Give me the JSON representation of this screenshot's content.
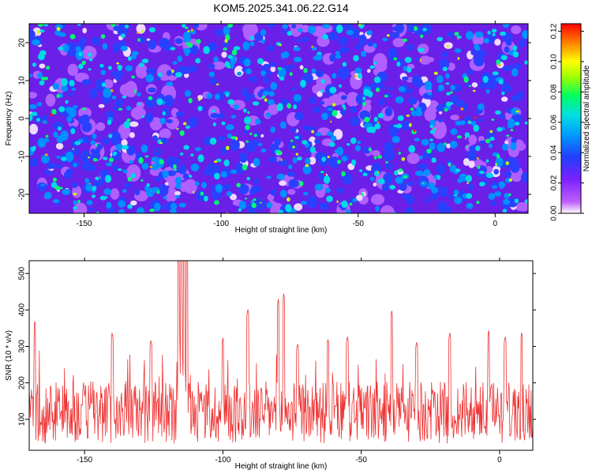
{
  "title": "KOM5.2025.341.06.22.G14",
  "chart_data": [
    {
      "type": "heatmap",
      "xlabel": "Height of straight line (km)",
      "ylabel": "Frequency (Hz)",
      "xlim": [
        -170,
        12
      ],
      "ylim": [
        -25,
        25
      ],
      "xticks": [
        -150,
        -100,
        -50,
        0
      ],
      "yticks": [
        -20,
        -10,
        0,
        10,
        20
      ],
      "xtick_labels": [
        "-150",
        "-100",
        "-50",
        "0"
      ],
      "ytick_labels": [
        "-20",
        "-10",
        "0",
        "10",
        "20"
      ],
      "colorbar": {
        "label": "Normalized spectral amplitude",
        "range": [
          0,
          0.125
        ],
        "ticks": [
          0.0,
          0.02,
          0.04,
          0.06,
          0.08,
          0.1,
          0.12
        ],
        "tick_labels": [
          "0.00",
          "0.02",
          "0.04",
          "0.06",
          "0.08",
          "0.10",
          "0.12"
        ]
      }
    },
    {
      "type": "line",
      "xlabel": "Height of straight line (km)",
      "ylabel": "SNR (10 * v/v)",
      "xlim": [
        -170,
        12
      ],
      "ylim": [
        15,
        535
      ],
      "xticks": [
        -150,
        -100,
        -50,
        0
      ],
      "yticks": [
        100,
        200,
        300,
        400,
        500
      ],
      "xtick_labels": [
        "-150",
        "-100",
        "-50",
        "0"
      ],
      "ytick_labels": [
        "100",
        "200",
        "300",
        "400",
        "500"
      ],
      "series": [
        {
          "name": "SNR",
          "color": "#ee3333",
          "noise_baseline": 110,
          "peaks": [
            {
              "x": -114,
              "y": 535
            },
            {
              "x": -115,
              "y": 510
            },
            {
              "x": -116,
              "y": 470
            },
            {
              "x": -113,
              "y": 490
            },
            {
              "x": -78,
              "y": 445
            },
            {
              "x": -80,
              "y": 430
            },
            {
              "x": -91,
              "y": 405
            },
            {
              "x": -39,
              "y": 400
            },
            {
              "x": -168,
              "y": 370
            },
            {
              "x": -140,
              "y": 340
            },
            {
              "x": -18,
              "y": 340
            },
            {
              "x": -4,
              "y": 345
            },
            {
              "x": 8,
              "y": 340
            },
            {
              "x": -55,
              "y": 330
            },
            {
              "x": -62,
              "y": 320
            },
            {
              "x": -126,
              "y": 320
            },
            {
              "x": -100,
              "y": 325
            },
            {
              "x": -73,
              "y": 310
            },
            {
              "x": -30,
              "y": 315
            },
            {
              "x": 2,
              "y": 330
            }
          ]
        }
      ]
    }
  ],
  "colors": {
    "line": "#ee3333",
    "colormap": [
      "#ffffff",
      "#9b30ff",
      "#3050ff",
      "#00d0ff",
      "#00ff60",
      "#ffff00",
      "#ff8000",
      "#ff0000"
    ]
  }
}
